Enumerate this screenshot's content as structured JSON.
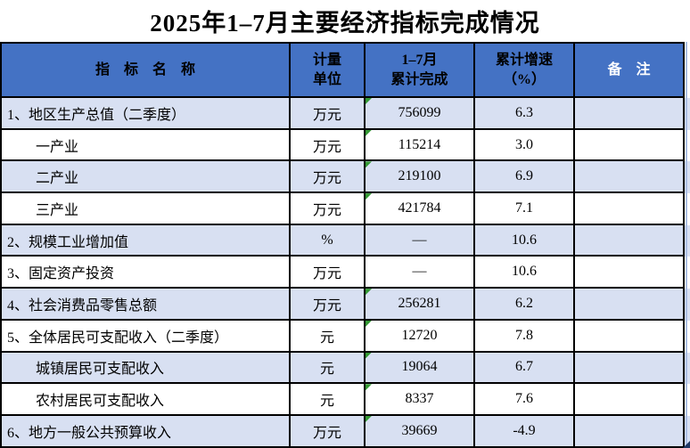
{
  "title": "2025年1–7月主要经济指标完成情况",
  "colors": {
    "header_bg": "#4472C4",
    "row_shade": "#D8E0F2",
    "row_plain": "#FFFFFF",
    "border": "#000000",
    "gridline_right": "#AEC1E7",
    "flag_green": "#339933",
    "corner_handle": "#1F3864",
    "header_note_text": "#FFFFFF"
  },
  "table": {
    "columns": [
      {
        "label": "指　标　名　称"
      },
      {
        "label": "计量",
        "label2": "单位"
      },
      {
        "label": "1–7月",
        "label2": "累计完成"
      },
      {
        "label": "累计增速",
        "label2": "（%）"
      },
      {
        "label": "备　注"
      }
    ],
    "rows": [
      {
        "name": "1、地区生产总值（二季度）",
        "unit": "万元",
        "value": "756099",
        "growth": "6.3",
        "note": "",
        "indent": false,
        "shade": true,
        "flag": true
      },
      {
        "name": "一产业",
        "unit": "万元",
        "value": "115214",
        "growth": "3.0",
        "note": "",
        "indent": true,
        "shade": false,
        "flag": true
      },
      {
        "name": "二产业",
        "unit": "万元",
        "value": "219100",
        "growth": "6.9",
        "note": "",
        "indent": true,
        "shade": true,
        "flag": true
      },
      {
        "name": "三产业",
        "unit": "万元",
        "value": "421784",
        "growth": "7.1",
        "note": "",
        "indent": true,
        "shade": false,
        "flag": true
      },
      {
        "name": "2、规模工业增加值",
        "unit": "%",
        "value": "—",
        "growth": "10.6",
        "note": "",
        "indent": false,
        "shade": true,
        "flag": false
      },
      {
        "name": "3、固定资产投资",
        "unit": "万元",
        "value": "—",
        "growth": "10.6",
        "note": "",
        "indent": false,
        "shade": false,
        "flag": false
      },
      {
        "name": "4、社会消费品零售总额",
        "unit": "万元",
        "value": "256281",
        "growth": "6.2",
        "note": "",
        "indent": false,
        "shade": true,
        "flag": true
      },
      {
        "name": "5、全体居民可支配收入（二季度）",
        "unit": "元",
        "value": "12720",
        "growth": "7.8",
        "note": "",
        "indent": false,
        "shade": false,
        "flag": true
      },
      {
        "name": "城镇居民可支配收入",
        "unit": "元",
        "value": "19064",
        "growth": "6.7",
        "note": "",
        "indent": true,
        "shade": true,
        "flag": true
      },
      {
        "name": "农村居民可支配收入",
        "unit": "元",
        "value": "8337",
        "growth": "7.6",
        "note": "",
        "indent": true,
        "shade": false,
        "flag": true
      },
      {
        "name": "6、地方一般公共预算收入",
        "unit": "万元",
        "value": "39669",
        "growth": "-4.9",
        "note": "",
        "indent": false,
        "shade": true,
        "flag": true
      }
    ]
  }
}
